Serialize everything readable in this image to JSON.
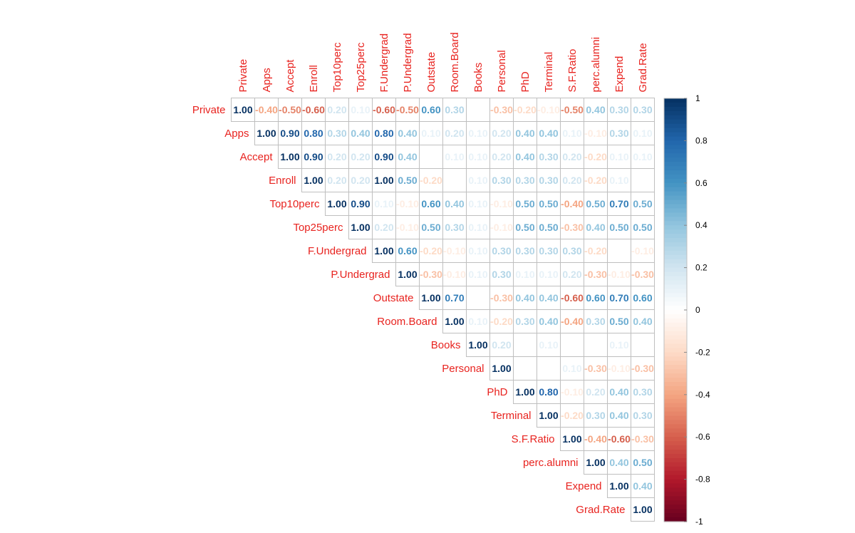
{
  "chart_data": {
    "type": "heatmap",
    "variables": [
      "Private",
      "Apps",
      "Accept",
      "Enroll",
      "Top10perc",
      "Top25perc",
      "F.Undergrad",
      "P.Undergrad",
      "Outstate",
      "Room.Board",
      "Books",
      "Personal",
      "PhD",
      "Terminal",
      "S.F.Ratio",
      "perc.alumni",
      "Expend",
      "Grad.Rate"
    ],
    "triangle": "upper",
    "matrix": [
      [
        1.0,
        -0.4,
        -0.5,
        -0.6,
        0.2,
        0.1,
        -0.6,
        -0.5,
        0.6,
        0.3,
        0.0,
        -0.3,
        -0.2,
        -0.1,
        -0.5,
        0.4,
        0.3,
        0.3
      ],
      [
        null,
        1.0,
        0.9,
        0.8,
        0.3,
        0.4,
        0.8,
        0.4,
        0.1,
        0.2,
        0.1,
        0.2,
        0.4,
        0.4,
        0.1,
        -0.1,
        0.3,
        0.1
      ],
      [
        null,
        null,
        1.0,
        0.9,
        0.2,
        0.2,
        0.9,
        0.4,
        0.0,
        0.1,
        0.1,
        0.2,
        0.4,
        0.3,
        0.2,
        -0.2,
        0.1,
        0.1
      ],
      [
        null,
        null,
        null,
        1.0,
        0.2,
        0.2,
        1.0,
        0.5,
        -0.2,
        0.0,
        0.1,
        0.3,
        0.3,
        0.3,
        0.2,
        -0.2,
        0.1,
        0.0
      ],
      [
        null,
        null,
        null,
        null,
        1.0,
        0.9,
        0.1,
        -0.1,
        0.6,
        0.4,
        0.1,
        -0.1,
        0.5,
        0.5,
        -0.4,
        0.5,
        0.7,
        0.5
      ],
      [
        null,
        null,
        null,
        null,
        null,
        1.0,
        0.2,
        -0.1,
        0.5,
        0.3,
        0.1,
        -0.1,
        0.5,
        0.5,
        -0.3,
        0.4,
        0.5,
        0.5
      ],
      [
        null,
        null,
        null,
        null,
        null,
        null,
        1.0,
        0.6,
        -0.2,
        -0.1,
        0.1,
        0.3,
        0.3,
        0.3,
        0.3,
        -0.2,
        0.0,
        -0.1
      ],
      [
        null,
        null,
        null,
        null,
        null,
        null,
        null,
        1.0,
        -0.3,
        -0.1,
        0.1,
        0.3,
        0.1,
        0.1,
        0.2,
        -0.3,
        -0.1,
        -0.3
      ],
      [
        null,
        null,
        null,
        null,
        null,
        null,
        null,
        null,
        1.0,
        0.7,
        0.0,
        -0.3,
        0.4,
        0.4,
        -0.6,
        0.6,
        0.7,
        0.6
      ],
      [
        null,
        null,
        null,
        null,
        null,
        null,
        null,
        null,
        null,
        1.0,
        0.1,
        -0.2,
        0.3,
        0.4,
        -0.4,
        0.3,
        0.5,
        0.4
      ],
      [
        null,
        null,
        null,
        null,
        null,
        null,
        null,
        null,
        null,
        null,
        1.0,
        0.2,
        0.0,
        0.1,
        0.0,
        0.0,
        0.1,
        0.0
      ],
      [
        null,
        null,
        null,
        null,
        null,
        null,
        null,
        null,
        null,
        null,
        null,
        1.0,
        0.0,
        0.0,
        0.1,
        -0.3,
        -0.1,
        -0.3
      ],
      [
        null,
        null,
        null,
        null,
        null,
        null,
        null,
        null,
        null,
        null,
        null,
        null,
        1.0,
        0.8,
        -0.1,
        0.2,
        0.4,
        0.3
      ],
      [
        null,
        null,
        null,
        null,
        null,
        null,
        null,
        null,
        null,
        null,
        null,
        null,
        null,
        1.0,
        -0.2,
        0.3,
        0.4,
        0.3
      ],
      [
        null,
        null,
        null,
        null,
        null,
        null,
        null,
        null,
        null,
        null,
        null,
        null,
        null,
        null,
        1.0,
        -0.4,
        -0.6,
        -0.3
      ],
      [
        null,
        null,
        null,
        null,
        null,
        null,
        null,
        null,
        null,
        null,
        null,
        null,
        null,
        null,
        null,
        1.0,
        0.4,
        0.5
      ],
      [
        null,
        null,
        null,
        null,
        null,
        null,
        null,
        null,
        null,
        null,
        null,
        null,
        null,
        null,
        null,
        null,
        1.0,
        0.4
      ],
      [
        null,
        null,
        null,
        null,
        null,
        null,
        null,
        null,
        null,
        null,
        null,
        null,
        null,
        null,
        null,
        null,
        null,
        1.0
      ]
    ],
    "value_format": "2 decimals",
    "colorbar": {
      "range": [
        -1,
        1
      ],
      "ticks": [
        "1",
        "0.8",
        "0.6",
        "0.4",
        "0.2",
        "0",
        "-0.2",
        "-0.4",
        "-0.6",
        "-0.8",
        "-1"
      ],
      "colors": [
        "#67001f",
        "#b2182b",
        "#d6604d",
        "#f4a582",
        "#fddbc7",
        "#ffffff",
        "#d1e5f0",
        "#92c5de",
        "#4393c3",
        "#2166ac",
        "#053061"
      ],
      "placement": "right"
    },
    "label_color": "#e8231f",
    "grid_color": "#bfbfbf"
  }
}
